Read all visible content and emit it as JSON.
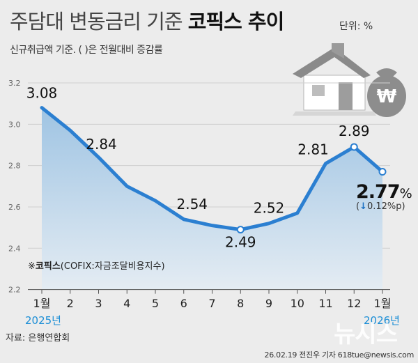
{
  "header": {
    "title_prefix": "주담대 변동금리 기준",
    "title_emphasis": "코픽스 추이",
    "unit": "단위: %",
    "subtitle": "신규취급액 기준. ( )은 전월대비 증감률"
  },
  "chart_data": {
    "type": "area",
    "title": "주담대 변동금리 기준 코픽스 추이",
    "ylabel": "%",
    "xlabel": "",
    "ylim": [
      2.2,
      3.2
    ],
    "yticks": [
      "2.2",
      "2.4",
      "2.6",
      "2.8",
      "3.0",
      "3.2"
    ],
    "grid": true,
    "categories": [
      "1월",
      "2",
      "3",
      "4",
      "5",
      "6",
      "7",
      "8",
      "9",
      "10",
      "11",
      "12",
      "1월"
    ],
    "series": [
      {
        "name": "코픽스(신규취급액 기준)",
        "values": [
          3.08,
          2.97,
          2.84,
          2.7,
          2.63,
          2.54,
          2.51,
          2.49,
          2.52,
          2.57,
          2.81,
          2.89,
          2.77
        ]
      }
    ],
    "data_labels": [
      "3.08",
      "",
      "2.84",
      "",
      "",
      "2.54",
      "",
      "2.49",
      "2.52",
      "",
      "2.81",
      "2.89",
      "2.77"
    ],
    "last_value": "2.77",
    "last_unit": "%",
    "change_arrow": "↓",
    "change_text": "0.12%p",
    "years": [
      "2025년",
      "2026년"
    ],
    "legend": {
      "symbol": "※",
      "name": "코픽스",
      "desc": "(COFIX:자금조달비용지수)"
    }
  },
  "colors": {
    "line": "#2b7fd1",
    "fill_top": "#9fc4e3",
    "fill_bottom": "#dde8f2",
    "year": "#1b8ed6",
    "arrow": "#1a6fc2"
  },
  "footer": {
    "source": "자료: 은행연합회",
    "credit": "26.02.19 전진우 기자 618tue@newsis.com",
    "watermark": "뉴시스"
  }
}
